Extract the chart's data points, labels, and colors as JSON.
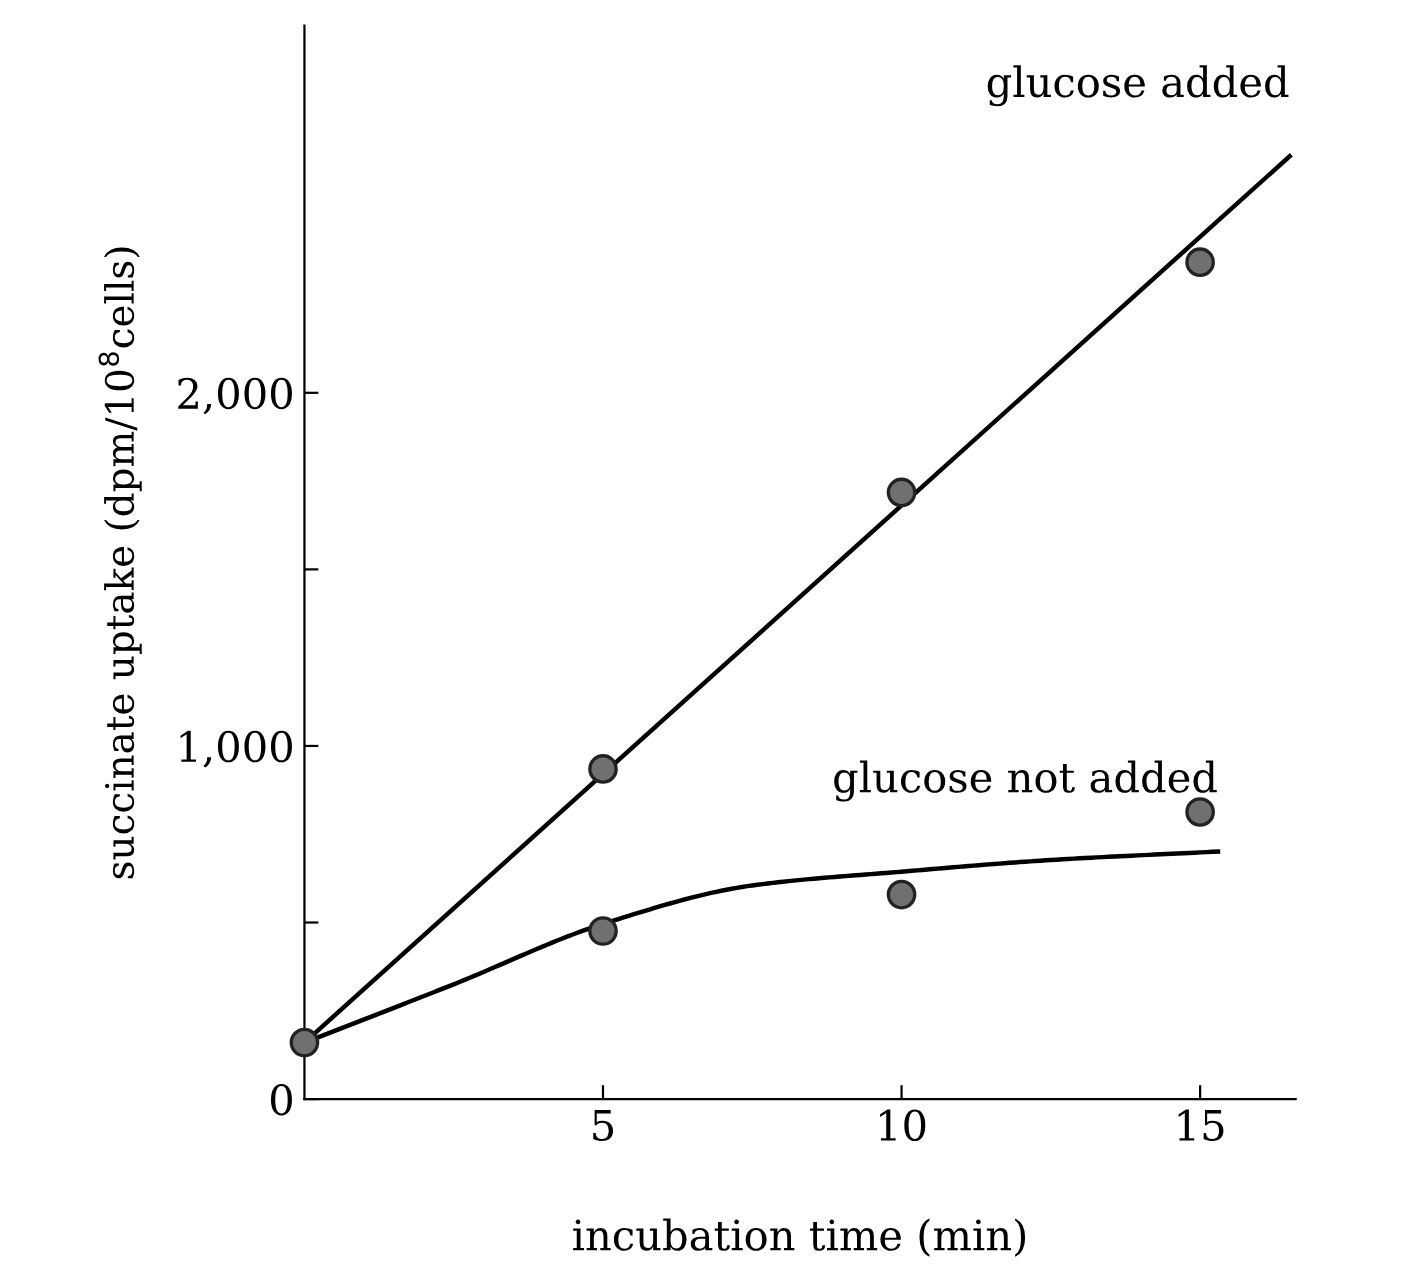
{
  "chart_data": {
    "type": "scatter",
    "xlabel": "incubation time (min)",
    "ylabel": "succinate uptake (dpm/10$^{8}$cells)",
    "xlim": [
      0,
      16.6
    ],
    "ylim": [
      0,
      3040
    ],
    "xticks": [
      5,
      10,
      15
    ],
    "yticks": [
      0,
      {
        "value": 500,
        "label": null
      },
      {
        "value": 1000,
        "label": "1,000"
      },
      {
        "value": 1500,
        "label": null
      },
      {
        "value": 2000,
        "label": "2,000"
      }
    ],
    "grid": false,
    "series": [
      {
        "color": "#707070",
        "marker": "circle",
        "x": [
          0,
          5,
          10,
          15
        ],
        "values": [
          160,
          935,
          1718,
          2370
        ]
      },
      {
        "color": "#707070",
        "marker": "circle",
        "x": [
          5,
          10,
          15
        ],
        "values": [
          476,
          579,
          813
        ]
      },
      {
        "type": "line",
        "marker": "none",
        "color": "#000000",
        "x": [
          0,
          16.5
        ],
        "values": [
          160,
          2670
        ]
      },
      {
        "type": "line",
        "marker": "none",
        "color": "#000000",
        "x": [
          0,
          2.5,
          5,
          7.5,
          10,
          12.5,
          15.3
        ],
        "values": [
          160,
          325,
          496,
          605,
          644,
          677,
          701
        ]
      }
    ],
    "annotations": [
      {
        "text": "glucose added",
        "x": 16.5,
        "y": 2670
      },
      {
        "text": "glucose not added",
        "x": 15.3,
        "y": 701
      }
    ]
  }
}
